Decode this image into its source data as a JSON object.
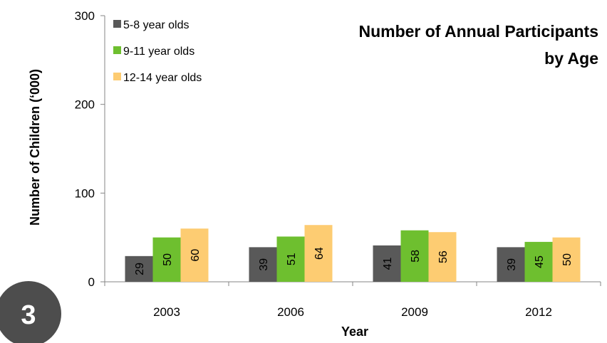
{
  "badge": {
    "number": "3",
    "color": "#4d4d4d"
  },
  "chart_data": {
    "type": "bar",
    "title_lines": [
      "Number of Annual Participants",
      "by Age"
    ],
    "xlabel": "Year",
    "ylabel": "Number of Children (‘000)",
    "ylim": [
      0,
      300
    ],
    "yticks": [
      0,
      100,
      200,
      300
    ],
    "grid": false,
    "legend_position": "top-left",
    "categories": [
      "2003",
      "2006",
      "2009",
      "2012"
    ],
    "series": [
      {
        "name": "5-8 year olds",
        "color": "#595959",
        "values": [
          29,
          39,
          41,
          39
        ]
      },
      {
        "name": "9-11 year olds",
        "color": "#6ebf2f",
        "values": [
          50,
          51,
          58,
          45
        ]
      },
      {
        "name": "12-14 year olds",
        "color": "#fdcc72",
        "values": [
          60,
          64,
          56,
          50
        ]
      }
    ]
  }
}
